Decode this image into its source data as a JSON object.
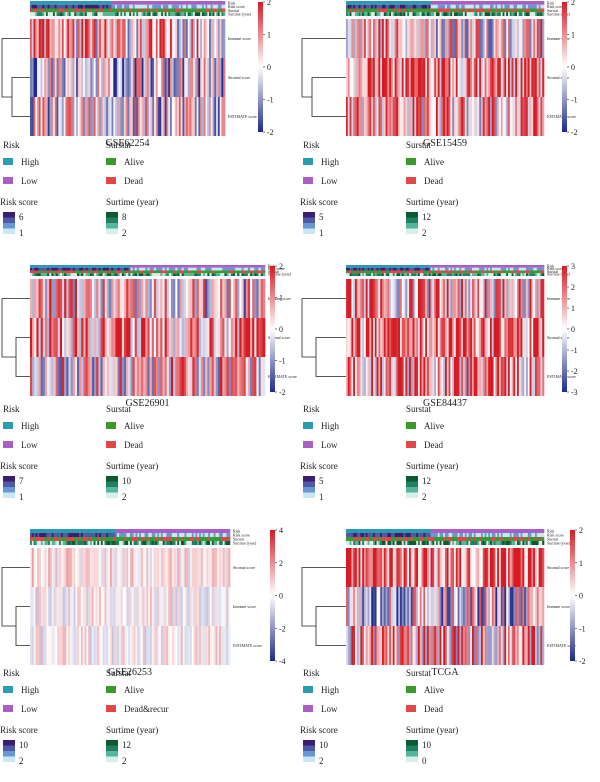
{
  "figure": "six heatmap panels with risk/survival annotation legends",
  "colors": {
    "high": "#2a9bb0",
    "low": "#a95ec4",
    "alive": "#3a9b2a",
    "dead": "#e04848",
    "heat_low": "#1f2a8a",
    "heat_mid": "#ffffff",
    "heat_high": "#d51b23",
    "risk_scale": [
      "#c5e8f2",
      "#6a97cf",
      "#4e5aa8",
      "#3a1f6e"
    ],
    "time_scale": [
      "#d5f0ea",
      "#55b59a",
      "#208060",
      "#0b5a30"
    ]
  },
  "chart_data": [
    {
      "type": "heatmap",
      "title": "GSE62254",
      "track_labels": [
        "Risk",
        "Risk score",
        "Surstat",
        "Surtime (year)"
      ],
      "row_labels": [
        "Immune score",
        "Stromal score",
        "ESTIMATE score"
      ],
      "color_range": [
        -2,
        2
      ],
      "ticks": [
        2,
        1,
        0,
        -1,
        -2
      ],
      "legend": {
        "risk_title": "Risk",
        "risk_levels": [
          "High",
          "Low"
        ],
        "surstat_title": "Surstat",
        "surstat_levels": [
          "Alive",
          "Dead"
        ],
        "score_title": "Risk score",
        "score_max": "6",
        "score_min": "1",
        "time_title": "Surtime (year)",
        "time_max": "8",
        "time_min": "2"
      }
    },
    {
      "type": "heatmap",
      "title": "GSE15459",
      "track_labels": [
        "Risk",
        "Risk score",
        "Surstat",
        "Surtime (year)"
      ],
      "row_labels": [
        "Immune score",
        "Stromal score",
        "ESTIMATE score"
      ],
      "color_range": [
        -2,
        2
      ],
      "ticks": [
        2,
        1,
        0,
        -1,
        -2
      ],
      "legend": {
        "risk_title": "Risk",
        "risk_levels": [
          "High",
          "Low"
        ],
        "surstat_title": "Surstat",
        "surstat_levels": [
          "Alive",
          "Dead"
        ],
        "score_title": "Risk score",
        "score_max": "5",
        "score_min": "1",
        "time_title": "Surtime (year)",
        "time_max": "12",
        "time_min": "2"
      }
    },
    {
      "type": "heatmap",
      "title": "GSE26901",
      "track_labels": [
        "Risk",
        "Risk score",
        "Surstat",
        "Surtime (year)"
      ],
      "row_labels": [
        "Immune score",
        "Stromal score",
        "ESTIMATE score"
      ],
      "color_range": [
        -2,
        2
      ],
      "ticks": [
        2,
        1,
        0,
        -1,
        -2
      ],
      "legend": {
        "risk_title": "Risk",
        "risk_levels": [
          "High",
          "Low"
        ],
        "surstat_title": "Surstat",
        "surstat_levels": [
          "Alive",
          "Dead"
        ],
        "score_title": "Risk score",
        "score_max": "7",
        "score_min": "1",
        "time_title": "Surtime (year)",
        "time_max": "10",
        "time_min": "2"
      }
    },
    {
      "type": "heatmap",
      "title": "GSE84437",
      "track_labels": [
        "Risk",
        "Risk score",
        "Surstat",
        "Surtime (year)"
      ],
      "row_labels": [
        "Immune score",
        "Stromal score",
        "ESTIMATE score"
      ],
      "color_range": [
        -3,
        3
      ],
      "ticks": [
        3,
        2,
        1,
        0,
        -1,
        -2,
        -3
      ],
      "legend": {
        "risk_title": "Risk",
        "risk_levels": [
          "High",
          "Low"
        ],
        "surstat_title": "Surstat",
        "surstat_levels": [
          "Alive",
          "Dead"
        ],
        "score_title": "Risk score",
        "score_max": "5",
        "score_min": "1",
        "time_title": "Surtime (year)",
        "time_max": "12",
        "time_min": "2"
      }
    },
    {
      "type": "heatmap",
      "title": "GSE26253",
      "track_labels": [
        "Risk",
        "Risk score",
        "Surstat",
        "Surtime (year)"
      ],
      "row_labels": [
        "Stromal score",
        "Immune score",
        "ESTIMATE score"
      ],
      "color_range": [
        -4,
        4
      ],
      "ticks": [
        4,
        2,
        0,
        -2,
        -4
      ],
      "legend": {
        "risk_title": "Risk",
        "risk_levels": [
          "High",
          "Low"
        ],
        "surstat_title": "Surstat",
        "surstat_levels": [
          "Alive",
          "Dead&recur"
        ],
        "score_title": "Risk score",
        "score_max": "10",
        "score_min": "2",
        "time_title": "Surtime (year)",
        "time_max": "12",
        "time_min": "2"
      }
    },
    {
      "type": "heatmap",
      "title": "TCGA",
      "track_labels": [
        "Risk",
        "Risk score",
        "Surstat",
        "Surtime (year)"
      ],
      "row_labels": [
        "Stromal score",
        "Immune score",
        "ESTIMATE score"
      ],
      "color_range": [
        -2,
        2
      ],
      "ticks": [
        2,
        1,
        0,
        -1,
        -2
      ],
      "legend": {
        "risk_title": "Risk",
        "risk_levels": [
          "High",
          "Low"
        ],
        "surstat_title": "Surstat",
        "surstat_levels": [
          "Alive",
          "Dead"
        ],
        "score_title": "Risk score",
        "score_max": "10",
        "score_min": "2",
        "time_title": "Surtime (year)",
        "time_max": "10",
        "time_min": "0"
      }
    }
  ]
}
